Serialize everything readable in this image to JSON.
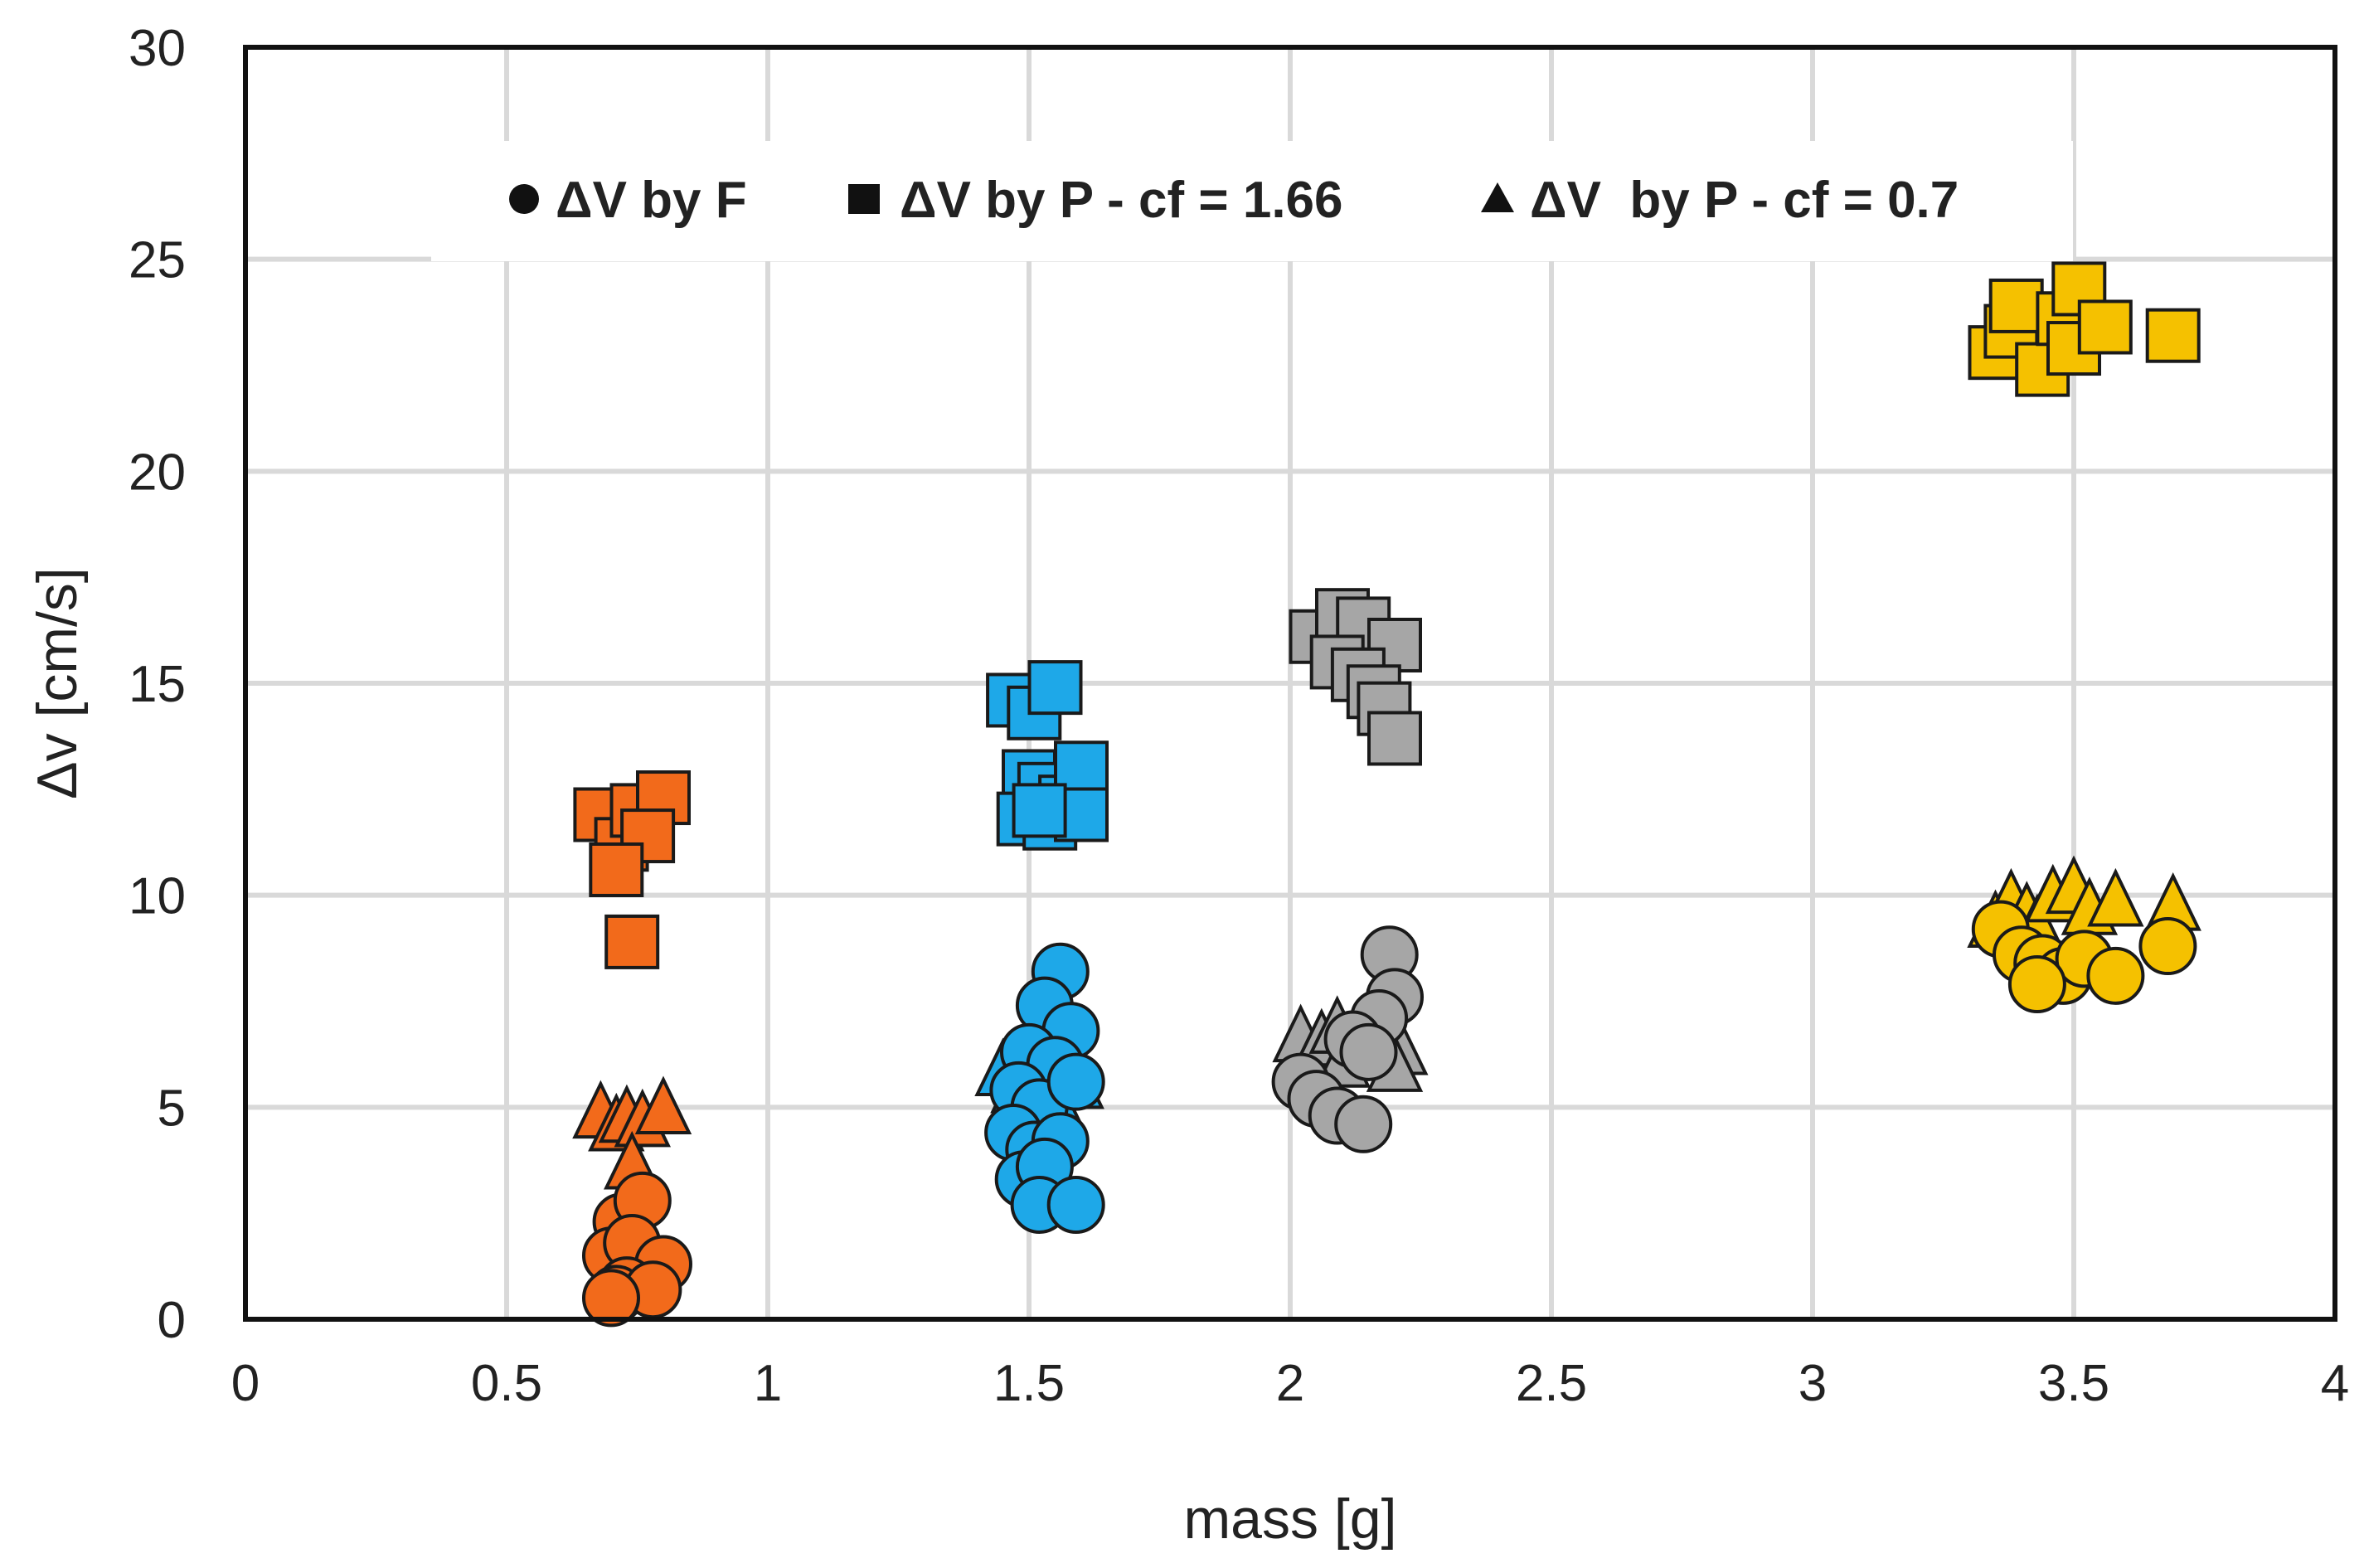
{
  "chart_data": {
    "type": "scatter",
    "title": "",
    "xlabel": "mass [g]",
    "ylabel": "Δv [cm/s]",
    "xlim": [
      0,
      4
    ],
    "ylim": [
      0,
      30
    ],
    "xticks": [
      "0",
      "0.5",
      "1",
      "1.5",
      "2",
      "2.5",
      "3",
      "3.5",
      "4"
    ],
    "yticks": [
      "0",
      "5",
      "10",
      "15",
      "20",
      "25",
      "30"
    ],
    "grid": true,
    "legend_position": "top",
    "legend": [
      {
        "label": "ΔV by F",
        "marker": "circle"
      },
      {
        "label": "ΔV by P - cf = 1.66",
        "marker": "square"
      },
      {
        "label": "ΔV  by P - cf = 0.7",
        "marker": "triangle"
      }
    ],
    "colors": {
      "orange": "#f26a1b",
      "blue": "#1ea8e8",
      "gray": "#a6a6a6",
      "yellow": "#f5c100",
      "edge": "#1a1a1a"
    },
    "series": [
      {
        "group": "orange",
        "marker": "circle",
        "points": [
          [
            0.72,
            2.3
          ],
          [
            0.76,
            2.8
          ],
          [
            0.7,
            1.5
          ],
          [
            0.74,
            1.8
          ],
          [
            0.8,
            1.3
          ],
          [
            0.73,
            0.8
          ],
          [
            0.71,
            0.6
          ],
          [
            0.78,
            0.7
          ],
          [
            0.7,
            0.5
          ]
        ]
      },
      {
        "group": "orange",
        "marker": "square",
        "points": [
          [
            0.68,
            11.9
          ],
          [
            0.72,
            11.2
          ],
          [
            0.75,
            12.0
          ],
          [
            0.8,
            12.3
          ],
          [
            0.77,
            11.4
          ],
          [
            0.71,
            10.6
          ],
          [
            0.74,
            8.9
          ]
        ]
      },
      {
        "group": "orange",
        "marker": "triangle",
        "points": [
          [
            0.68,
            4.8
          ],
          [
            0.71,
            4.5
          ],
          [
            0.73,
            4.7
          ],
          [
            0.76,
            4.6
          ],
          [
            0.8,
            4.9
          ],
          [
            0.74,
            3.6
          ]
        ]
      },
      {
        "group": "blue",
        "marker": "circle",
        "points": [
          [
            1.56,
            8.2
          ],
          [
            1.53,
            7.4
          ],
          [
            1.58,
            6.8
          ],
          [
            1.5,
            6.3
          ],
          [
            1.55,
            6.0
          ],
          [
            1.48,
            5.4
          ],
          [
            1.52,
            5.0
          ],
          [
            1.59,
            5.6
          ],
          [
            1.47,
            4.4
          ],
          [
            1.51,
            4.0
          ],
          [
            1.56,
            4.2
          ],
          [
            1.49,
            3.3
          ],
          [
            1.53,
            3.6
          ],
          [
            1.52,
            2.7
          ],
          [
            1.59,
            2.7
          ]
        ]
      },
      {
        "group": "blue",
        "marker": "square",
        "points": [
          [
            1.47,
            14.6
          ],
          [
            1.51,
            14.3
          ],
          [
            1.55,
            14.9
          ],
          [
            1.5,
            12.8
          ],
          [
            1.53,
            12.5
          ],
          [
            1.57,
            12.2
          ],
          [
            1.6,
            13.0
          ],
          [
            1.49,
            11.8
          ],
          [
            1.54,
            11.7
          ],
          [
            1.6,
            11.9
          ],
          [
            1.52,
            12.0
          ]
        ]
      },
      {
        "group": "blue",
        "marker": "triangle",
        "points": [
          [
            1.45,
            5.8
          ],
          [
            1.48,
            5.4
          ],
          [
            1.5,
            6.0
          ],
          [
            1.53,
            5.6
          ],
          [
            1.56,
            6.1
          ],
          [
            1.59,
            5.5
          ],
          [
            1.52,
            4.9
          ],
          [
            1.55,
            5.1
          ]
        ]
      },
      {
        "group": "gray",
        "marker": "circle",
        "points": [
          [
            2.19,
            8.6
          ],
          [
            2.2,
            7.6
          ],
          [
            2.17,
            7.1
          ],
          [
            2.12,
            6.6
          ],
          [
            2.15,
            6.3
          ],
          [
            2.02,
            5.6
          ],
          [
            2.05,
            5.2
          ],
          [
            2.09,
            4.8
          ],
          [
            2.14,
            4.6
          ]
        ]
      },
      {
        "group": "gray",
        "marker": "square",
        "points": [
          [
            2.05,
            16.1
          ],
          [
            2.1,
            16.6
          ],
          [
            2.14,
            16.4
          ],
          [
            2.2,
            15.9
          ],
          [
            2.09,
            15.5
          ],
          [
            2.13,
            15.2
          ],
          [
            2.16,
            14.8
          ],
          [
            2.18,
            14.4
          ],
          [
            2.2,
            13.7
          ]
        ]
      },
      {
        "group": "gray",
        "marker": "triangle",
        "points": [
          [
            2.02,
            6.6
          ],
          [
            2.06,
            6.5
          ],
          [
            2.09,
            6.8
          ],
          [
            2.13,
            6.6
          ],
          [
            2.18,
            7.0
          ],
          [
            2.21,
            6.3
          ],
          [
            2.1,
            6.0
          ],
          [
            2.2,
            5.9
          ]
        ]
      },
      {
        "group": "yellow",
        "marker": "circle",
        "points": [
          [
            3.36,
            9.2
          ],
          [
            3.4,
            8.6
          ],
          [
            3.44,
            8.4
          ],
          [
            3.48,
            8.1
          ],
          [
            3.52,
            8.5
          ],
          [
            3.58,
            8.1
          ],
          [
            3.68,
            8.8
          ],
          [
            3.43,
            7.9
          ]
        ]
      },
      {
        "group": "yellow",
        "marker": "square",
        "points": [
          [
            3.35,
            22.8
          ],
          [
            3.38,
            23.3
          ],
          [
            3.39,
            23.9
          ],
          [
            3.44,
            22.4
          ],
          [
            3.48,
            23.6
          ],
          [
            3.51,
            24.3
          ],
          [
            3.5,
            22.9
          ],
          [
            3.56,
            23.4
          ],
          [
            3.69,
            23.2
          ]
        ]
      },
      {
        "group": "yellow",
        "marker": "triangle",
        "points": [
          [
            3.35,
            9.3
          ],
          [
            3.38,
            9.8
          ],
          [
            3.41,
            9.5
          ],
          [
            3.43,
            9.2
          ],
          [
            3.46,
            9.9
          ],
          [
            3.5,
            10.1
          ],
          [
            3.53,
            9.6
          ],
          [
            3.58,
            9.8
          ],
          [
            3.69,
            9.7
          ]
        ]
      }
    ]
  }
}
